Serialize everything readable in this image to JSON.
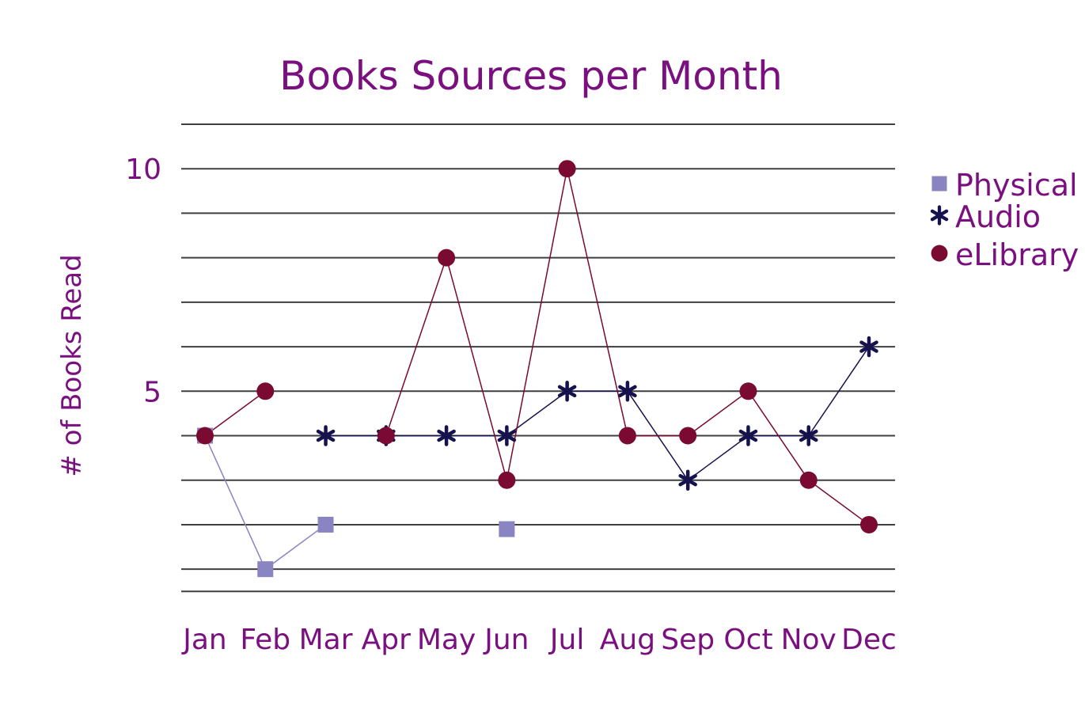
{
  "chart_data": {
    "type": "line",
    "title": "Books Sources per Month",
    "xlabel": "",
    "ylabel": "# of Books Read",
    "categories": [
      "Jan",
      "Feb",
      "Mar",
      "Apr",
      "May",
      "Jun",
      "Jul",
      "Aug",
      "Sep",
      "Oct",
      "Nov",
      "Dec"
    ],
    "ylim": [
      -0.1,
      11
    ],
    "yticks": [
      5,
      10
    ],
    "ytick_labels": [
      "5",
      "10"
    ],
    "gridlines": [
      0.5,
      1,
      2,
      3,
      4,
      5,
      6,
      7,
      8,
      9,
      10,
      11
    ],
    "grid": true,
    "legend": "right",
    "colors": {
      "title": "#7a0f7f",
      "text": "#7a0f7f",
      "grid": "#3f3f3f"
    },
    "series": [
      {
        "name": "Physical",
        "marker": "square",
        "color": "#8a85c2",
        "values": [
          4,
          1,
          2,
          null,
          null,
          1.9,
          null,
          null,
          null,
          null,
          null,
          null
        ]
      },
      {
        "name": "Audio",
        "marker": "asterisk",
        "color": "#15124d",
        "values": [
          null,
          null,
          4,
          4,
          4,
          4,
          5,
          5,
          3,
          4,
          4,
          6
        ]
      },
      {
        "name": "eLibrary",
        "marker": "circle",
        "color": "#7a0a31",
        "values": [
          4,
          5,
          null,
          4,
          8,
          3,
          10,
          4,
          4,
          5,
          3,
          2
        ]
      }
    ]
  }
}
